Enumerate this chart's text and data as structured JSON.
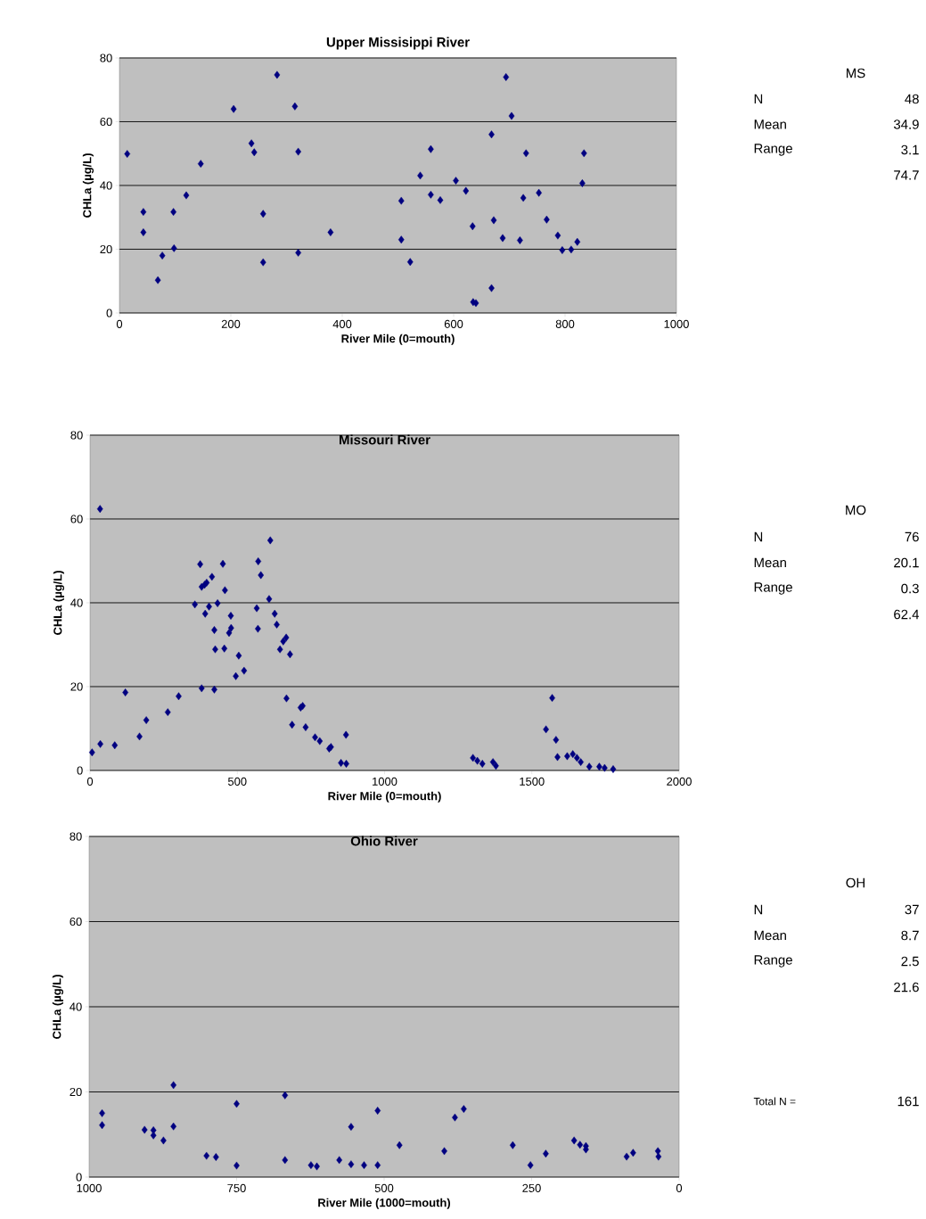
{
  "chart_data": [
    {
      "type": "scatter",
      "title": "Upper Missisippi River",
      "xlabel": "River Mile (0=mouth)",
      "ylabel": "CHLa (µg/L)",
      "xlim": [
        0,
        1000
      ],
      "xticks": [
        0,
        200,
        400,
        600,
        800,
        1000
      ],
      "ylim": [
        0,
        80
      ],
      "yticks": [
        0,
        20,
        40,
        60,
        80
      ],
      "grid": "y",
      "marker": "diamond",
      "color": "#000080",
      "x": [
        14,
        43,
        43,
        69,
        77,
        97,
        98,
        120,
        146,
        205,
        237,
        242,
        258,
        258,
        283,
        315,
        321,
        321,
        379,
        506,
        506,
        522,
        540,
        559,
        559,
        576,
        604,
        622,
        634,
        635,
        640,
        668,
        668,
        672,
        688,
        694,
        704,
        719,
        725,
        730,
        753,
        767,
        787,
        795,
        811,
        822,
        834,
        831
      ],
      "values": [
        49.9,
        31.7,
        25.3,
        10.3,
        18.0,
        31.7,
        20.3,
        36.9,
        46.8,
        64.0,
        53.2,
        50.4,
        31.1,
        15.9,
        74.7,
        64.8,
        50.6,
        18.9,
        25.3,
        35.2,
        23.0,
        16.0,
        43.1,
        51.4,
        37.1,
        35.4,
        41.5,
        38.3,
        27.2,
        3.4,
        3.1,
        56.0,
        7.8,
        29.1,
        23.5,
        74.0,
        61.8,
        22.8,
        36.1,
        50.1,
        37.7,
        29.3,
        24.3,
        19.7,
        19.9,
        22.3,
        50.1,
        40.7
      ]
    },
    {
      "type": "other",
      "title": "MS",
      "categories": [
        "N",
        "Mean",
        "Range",
        null
      ],
      "values": [
        48,
        34.9,
        3.1,
        74.7
      ],
      "data_labels": true
    },
    {
      "type": "scatter",
      "title": "Missouri River",
      "xlabel": "River Mile (0=mouth)",
      "ylabel": "CHLa (µg/L)",
      "xlim": [
        0,
        2000
      ],
      "xticks": [
        0,
        500,
        1000,
        1500,
        2000
      ],
      "ylim": [
        0,
        80
      ],
      "yticks": [
        0,
        20,
        40,
        60,
        80
      ],
      "grid": "y",
      "marker": "diamond",
      "color": "#000080",
      "x": [
        7,
        34,
        35,
        84,
        120,
        168,
        191,
        264,
        301,
        356,
        374,
        379,
        379,
        389,
        396,
        404,
        391,
        414,
        422,
        425,
        422,
        433,
        451,
        458,
        456,
        478,
        479,
        472,
        505,
        495,
        523,
        566,
        570,
        571,
        580,
        612,
        608,
        627,
        634,
        645,
        656,
        666,
        679,
        667,
        686,
        715,
        722,
        732,
        764,
        780,
        812,
        818,
        852,
        870,
        869,
        1300,
        1315,
        1332,
        1368,
        1378,
        1548,
        1569,
        1582,
        1587,
        1620,
        1639,
        1653,
        1666,
        1695,
        1729,
        1747,
        1776
      ],
      "values": [
        4.3,
        62.4,
        6.3,
        6.0,
        18.6,
        8.1,
        12.0,
        13.9,
        17.7,
        39.6,
        49.2,
        19.6,
        43.8,
        44.3,
        44.8,
        39.1,
        37.4,
        46.2,
        33.5,
        28.9,
        19.3,
        39.9,
        49.3,
        43.0,
        29.1,
        36.9,
        34.0,
        32.8,
        27.4,
        22.5,
        23.8,
        38.7,
        33.8,
        49.9,
        46.6,
        54.9,
        40.9,
        37.4,
        34.8,
        28.9,
        30.8,
        31.7,
        27.7,
        17.2,
        10.9,
        15.0,
        15.4,
        10.3,
        7.9,
        7.0,
        5.2,
        5.6,
        1.8,
        1.6,
        8.5,
        3.0,
        2.3,
        1.6,
        2.0,
        1.1,
        9.8,
        17.3,
        7.3,
        3.2,
        3.4,
        3.9,
        3.0,
        2.0,
        0.9,
        0.9,
        0.6,
        0.3
      ]
    },
    {
      "type": "other",
      "title": "MO",
      "categories": [
        "N",
        "Mean",
        "Range",
        null
      ],
      "values": [
        76,
        20.1,
        0.3,
        62.4
      ],
      "data_labels": true
    },
    {
      "type": "scatter",
      "title": "Ohio River",
      "xlabel": "River Mile (1000=mouth)",
      "ylabel": "CHLa (µg/L)",
      "xlim": [
        1000,
        0
      ],
      "xticks": [
        1000,
        750,
        500,
        250,
        0
      ],
      "ylim": [
        0,
        80
      ],
      "yticks": [
        0,
        20,
        40,
        60,
        80
      ],
      "grid": "y",
      "marker": "diamond",
      "color": "#000080",
      "x": [
        978,
        978,
        906,
        891,
        891,
        874,
        857,
        857,
        801,
        785,
        750,
        750,
        668,
        668,
        624,
        614,
        576,
        556,
        556,
        534,
        511,
        511,
        474,
        398,
        380,
        365,
        282,
        252,
        226,
        178,
        168,
        158,
        158,
        89,
        78,
        36,
        35
      ],
      "values": [
        15.0,
        12.2,
        11.1,
        11.0,
        9.8,
        8.6,
        21.6,
        11.9,
        5.0,
        4.7,
        17.2,
        2.7,
        19.2,
        4.0,
        2.8,
        2.5,
        4.0,
        11.8,
        3.0,
        2.8,
        15.6,
        2.8,
        7.5,
        6.1,
        14.0,
        16.0,
        7.5,
        2.8,
        5.5,
        8.6,
        7.6,
        7.3,
        6.5,
        4.8,
        5.7,
        6.1,
        4.8
      ]
    },
    {
      "type": "other",
      "title": "OH",
      "categories": [
        "N",
        "Mean",
        "Range",
        null
      ],
      "values": [
        37,
        8.7,
        2.5,
        21.6
      ],
      "data_labels": true
    },
    {
      "type": "other",
      "categories": [
        "Total N ="
      ],
      "values": [
        161
      ],
      "data_labels": true
    }
  ]
}
